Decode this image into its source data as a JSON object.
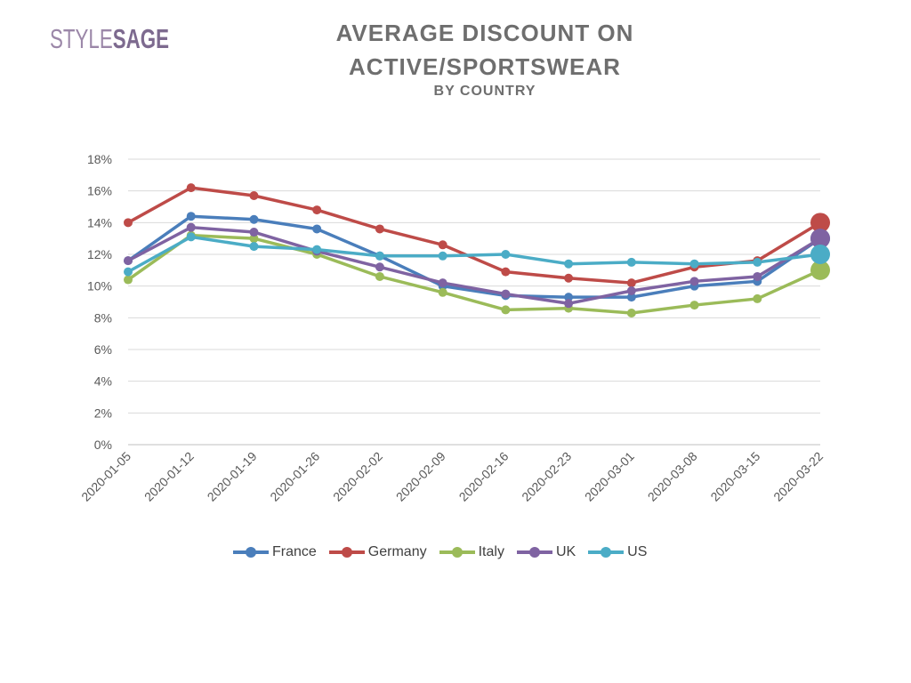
{
  "logo": {
    "part1": "STYLE",
    "part2": "SAGE"
  },
  "header": {
    "title_line1": "AVERAGE DISCOUNT ON",
    "title_line2": "ACTIVE/SPORTSWEAR",
    "subtitle": "BY COUNTRY"
  },
  "chart_data": {
    "type": "line",
    "title": "AVERAGE DISCOUNT ON ACTIVE/SPORTSWEAR",
    "subtitle": "BY COUNTRY",
    "x": [
      "2020-01-05",
      "2020-01-12",
      "2020-01-19",
      "2020-01-26",
      "2020-02-02",
      "2020-02-09",
      "2020-02-16",
      "2020-02-23",
      "2020-03-01",
      "2020-03-08",
      "2020-03-15",
      "2020-03-22"
    ],
    "y_ticks": [
      "0%",
      "2%",
      "4%",
      "6%",
      "8%",
      "10%",
      "12%",
      "14%",
      "16%",
      "18%"
    ],
    "ylim": [
      0,
      18
    ],
    "grid": true,
    "legend_position": "bottom",
    "series": [
      {
        "name": "France",
        "color": "#4a7ebb",
        "values": [
          11.6,
          14.4,
          14.2,
          13.6,
          11.9,
          10.0,
          9.4,
          9.3,
          9.3,
          10.0,
          10.3,
          13.0
        ]
      },
      {
        "name": "Germany",
        "color": "#be4b48",
        "values": [
          14.0,
          16.2,
          15.7,
          14.8,
          13.6,
          12.6,
          10.9,
          10.5,
          10.2,
          11.2,
          11.6,
          14.0
        ]
      },
      {
        "name": "Italy",
        "color": "#9bbb59",
        "values": [
          10.4,
          13.2,
          13.0,
          12.0,
          10.6,
          9.6,
          8.5,
          8.6,
          8.3,
          8.8,
          9.2,
          11.0
        ]
      },
      {
        "name": "UK",
        "color": "#7f63a2",
        "values": [
          11.6,
          13.7,
          13.4,
          12.2,
          11.2,
          10.2,
          9.5,
          8.9,
          9.7,
          10.3,
          10.6,
          13.0
        ]
      },
      {
        "name": "US",
        "color": "#4bacc6",
        "values": [
          10.9,
          13.1,
          12.5,
          12.3,
          11.9,
          11.9,
          12.0,
          11.4,
          11.5,
          11.4,
          11.5,
          12.0
        ]
      }
    ]
  }
}
